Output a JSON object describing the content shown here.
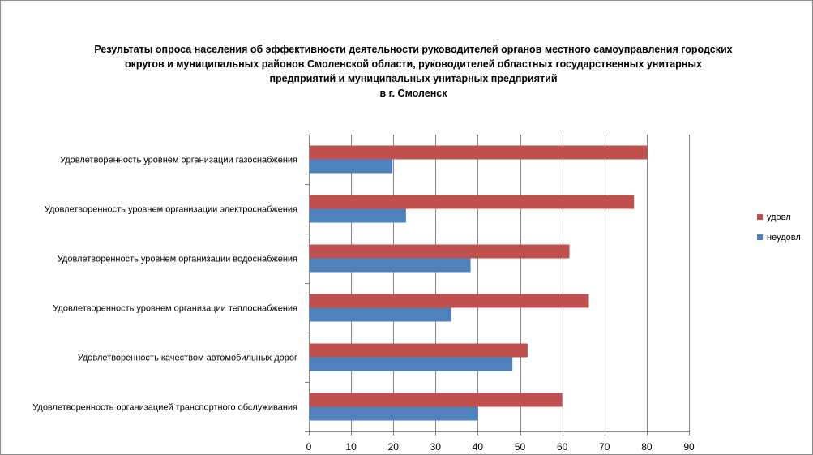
{
  "chart_data": {
    "type": "bar",
    "orientation": "horizontal",
    "title_lines": [
      "Результаты опроса населения об эффективности деятельности руководителей органов местного самоуправления городских",
      "округов и муниципальных районов Смоленской области, руководителей областных государственных унитарных",
      "предприятий и муниципальных унитарных предприятий",
      "в г. Смоленск"
    ],
    "categories": [
      "Удовлетворенность  уровнем  организации газоснабжения",
      "Удовлетворенность  уровнем организации электроснабжения",
      "Удовлетворенность  уровнем  организации водоснабжения",
      "Удовлетворенность  уровнем  организации теплоснабжения",
      "Удовлетворенность  качеством  автомобильных дорог",
      "Удовлетворенность  организацией  транспортного обслуживания"
    ],
    "series": [
      {
        "name": "удовл",
        "color": "#c0504d",
        "values": [
          80.2,
          77.0,
          61.7,
          66.3,
          51.8,
          60.0
        ]
      },
      {
        "name": "неудовл",
        "color": "#4f81bd",
        "values": [
          19.8,
          23.0,
          38.3,
          33.7,
          48.2,
          40.0
        ]
      }
    ],
    "xlim": [
      0,
      90
    ],
    "xticks": [
      0,
      10,
      20,
      30,
      40,
      50,
      60,
      70,
      80,
      90
    ],
    "grid": true,
    "legend_position": "right"
  }
}
